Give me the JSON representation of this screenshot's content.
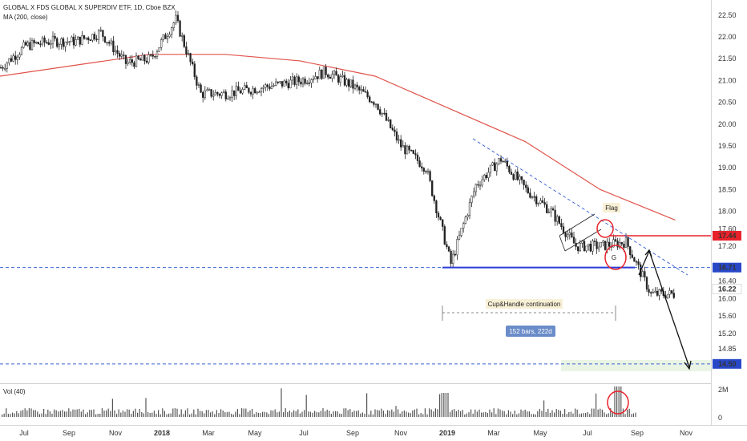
{
  "chart_data": {
    "type": "candlestick",
    "title": "GLOBAL X FDS GLOBAL X SUPERDIV ETF, 1D, Cboe BZX",
    "ma_label": "MA (200, close)",
    "volume_label": "Vol (40)",
    "y_ticks": [
      "22.50",
      "22.00",
      "21.50",
      "21.00",
      "20.50",
      "20.00",
      "19.50",
      "19.00",
      "18.50",
      "18.00",
      "17.60",
      "17.20",
      "16.40",
      "16.00",
      "15.60",
      "15.20",
      "14.85"
    ],
    "y_range": [
      14.35,
      22.7
    ],
    "volume_ticks": [
      "2M",
      "0"
    ],
    "x_ticks": [
      "Jul",
      "Sep",
      "Nov",
      "2018",
      "Mar",
      "May",
      "Jul",
      "Sep",
      "Nov",
      "2019",
      "Mar",
      "May",
      "Jul",
      "Sep",
      "Nov"
    ],
    "price_series_monthly": [
      {
        "month": "2017-06",
        "close": 21.3
      },
      {
        "month": "2017-07",
        "close": 21.8
      },
      {
        "month": "2017-08",
        "close": 21.9
      },
      {
        "month": "2017-09",
        "close": 21.9
      },
      {
        "month": "2017-10",
        "close": 22.1
      },
      {
        "month": "2017-11",
        "close": 21.4
      },
      {
        "month": "2017-12",
        "close": 21.5
      },
      {
        "month": "2018-01",
        "close": 22.4
      },
      {
        "month": "2018-02",
        "close": 20.7
      },
      {
        "month": "2018-03",
        "close": 20.7
      },
      {
        "month": "2018-04",
        "close": 20.8
      },
      {
        "month": "2018-05",
        "close": 20.9
      },
      {
        "month": "2018-06",
        "close": 21.0
      },
      {
        "month": "2018-07",
        "close": 21.2
      },
      {
        "month": "2018-08",
        "close": 20.9
      },
      {
        "month": "2018-09",
        "close": 20.5
      },
      {
        "month": "2018-10",
        "close": 19.5
      },
      {
        "month": "2018-11",
        "close": 19.0
      },
      {
        "month": "2018-12",
        "close": 16.8
      },
      {
        "month": "2019-01",
        "close": 18.6
      },
      {
        "month": "2019-02",
        "close": 19.2
      },
      {
        "month": "2019-03",
        "close": 18.5
      },
      {
        "month": "2019-04",
        "close": 18.0
      },
      {
        "month": "2019-05",
        "close": 17.2
      },
      {
        "month": "2019-06",
        "close": 17.2
      },
      {
        "month": "2019-07",
        "close": 17.3
      },
      {
        "month": "2019-08",
        "close": 16.1
      },
      {
        "month": "2019-09",
        "close": 16.1
      }
    ],
    "ma_series_monthly": [
      {
        "month": "2017-06",
        "value": 21.1
      },
      {
        "month": "2017-09",
        "value": 21.35
      },
      {
        "month": "2017-12",
        "value": 21.6
      },
      {
        "month": "2018-03",
        "value": 21.6
      },
      {
        "month": "2018-06",
        "value": 21.45
      },
      {
        "month": "2018-09",
        "value": 21.1
      },
      {
        "month": "2018-12",
        "value": 20.35
      },
      {
        "month": "2019-03",
        "value": 19.6
      },
      {
        "month": "2019-06",
        "value": 18.5
      },
      {
        "month": "2019-09",
        "value": 17.8
      }
    ],
    "price_labels": [
      {
        "text": "17.44",
        "price": 17.44,
        "color": "#e8222a"
      },
      {
        "text": "16.71",
        "price": 16.71,
        "color": "#2848c8"
      },
      {
        "text": "16.22",
        "price": 16.22,
        "color": "#ffffff"
      },
      {
        "text": "14.50",
        "price": 14.5,
        "color": "#2848c8"
      }
    ],
    "annotations": {
      "flag_label": "Flag",
      "gap_label": "G",
      "pattern_label": "Cup&Handle continuation",
      "measure_label": "152 bars, 222d"
    }
  },
  "colors": {
    "candle": "#222222",
    "ma": "#e0524a",
    "support": "#2a3bd6",
    "resistance_flag": "#e8222a",
    "dashed": "#3d63d4",
    "target_zone": "#eaf4e4",
    "measure_box": "#6a8cc8",
    "pattern_box": "#f8f0d6"
  }
}
